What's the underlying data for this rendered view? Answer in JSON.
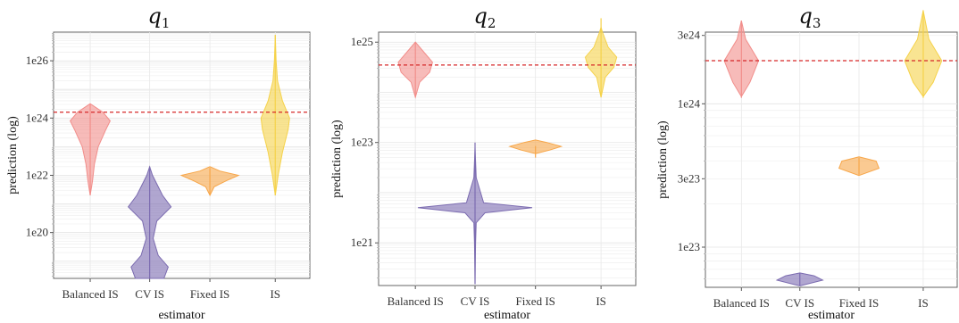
{
  "chart_data": [
    {
      "type": "violin",
      "title": {
        "base": "q",
        "sub": "1"
      },
      "xlabel": "estimator",
      "ylabel": "prediction (log)",
      "y_scale": "log",
      "ylim_log10": [
        18.4,
        27.0
      ],
      "y_ticks": [
        {
          "label": "1e20",
          "value": 1e+20
        },
        {
          "label": "1e22",
          "value": 1e+22
        },
        {
          "label": "1e24",
          "value": 1e+24
        },
        {
          "label": "1e26",
          "value": 1e+26
        }
      ],
      "categories": [
        "Balanced IS",
        "CV IS",
        "Fixed IS",
        "IS"
      ],
      "reference_line": 1.6e+24,
      "grid": true,
      "series": [
        {
          "category": "Balanced IS",
          "color": "#f28e8b",
          "min": 2e+21,
          "max": 3e+24,
          "profile": [
            [
              21.3,
              0.0
            ],
            [
              21.8,
              0.08
            ],
            [
              22.4,
              0.15
            ],
            [
              23.0,
              0.28
            ],
            [
              23.6,
              0.55
            ],
            [
              23.9,
              0.7
            ],
            [
              24.2,
              0.45
            ],
            [
              24.5,
              0.0
            ]
          ]
        },
        {
          "category": "CV IS",
          "color": "#7b6bb0",
          "min": 2.5e+18,
          "max": 2e+22,
          "profile": [
            [
              18.4,
              0.5
            ],
            [
              18.8,
              0.65
            ],
            [
              19.2,
              0.3
            ],
            [
              19.8,
              0.12
            ],
            [
              20.4,
              0.25
            ],
            [
              20.9,
              0.75
            ],
            [
              21.3,
              0.45
            ],
            [
              22.0,
              0.1
            ],
            [
              22.3,
              0.0
            ]
          ]
        },
        {
          "category": "Fixed IS",
          "color": "#f7a649",
          "min": 2e+21,
          "max": 1.8e+22,
          "profile": [
            [
              21.3,
              0.0
            ],
            [
              21.6,
              0.15
            ],
            [
              21.8,
              0.55
            ],
            [
              22.0,
              1.0
            ],
            [
              22.15,
              0.35
            ],
            [
              22.3,
              0.0
            ]
          ]
        },
        {
          "category": "IS",
          "color": "#f5d24a",
          "min": 2e+21,
          "max": 8e+26,
          "profile": [
            [
              21.3,
              0.0
            ],
            [
              22.0,
              0.1
            ],
            [
              22.8,
              0.25
            ],
            [
              23.6,
              0.45
            ],
            [
              24.0,
              0.5
            ],
            [
              24.6,
              0.25
            ],
            [
              25.3,
              0.08
            ],
            [
              26.0,
              0.03
            ],
            [
              26.9,
              0.0
            ]
          ]
        }
      ]
    },
    {
      "type": "violin",
      "title": {
        "base": "q",
        "sub": "2"
      },
      "xlabel": "estimator",
      "ylabel": "prediction (log)",
      "y_scale": "log",
      "ylim_log10": [
        20.15,
        25.2
      ],
      "y_ticks": [
        {
          "label": "1e21",
          "value": 1e+21
        },
        {
          "label": "1e23",
          "value": 1e+23
        },
        {
          "label": "1e25",
          "value": 1e+25
        }
      ],
      "categories": [
        "Balanced IS",
        "CV IS",
        "Fixed IS",
        "IS"
      ],
      "reference_line": 3.5e+24,
      "grid": true,
      "series": [
        {
          "category": "Balanced IS",
          "color": "#f28e8b",
          "min": 8e+23,
          "max": 1e+25,
          "profile": [
            [
              23.9,
              0.0
            ],
            [
              24.2,
              0.15
            ],
            [
              24.4,
              0.5
            ],
            [
              24.6,
              0.6
            ],
            [
              24.8,
              0.3
            ],
            [
              25.0,
              0.0
            ]
          ]
        },
        {
          "category": "CV IS",
          "color": "#7b6bb0",
          "min": 1.5e+20,
          "max": 1e+23,
          "profile": [
            [
              20.2,
              0.0
            ],
            [
              21.0,
              0.02
            ],
            [
              21.4,
              0.04
            ],
            [
              21.6,
              0.35
            ],
            [
              21.7,
              2.0
            ],
            [
              21.8,
              0.3
            ],
            [
              22.3,
              0.04
            ],
            [
              22.9,
              0.0
            ]
          ]
        },
        {
          "category": "Fixed IS",
          "color": "#f7a649",
          "min": 5e+22,
          "max": 8.5e+22,
          "profile": [
            [
              22.78,
              0.0
            ],
            [
              22.85,
              0.5
            ],
            [
              22.92,
              0.9
            ],
            [
              23.0,
              0.4
            ],
            [
              23.05,
              0.0
            ]
          ]
        },
        {
          "category": "IS",
          "color": "#f5d24a",
          "min": 8e+23,
          "max": 3e+25,
          "profile": [
            [
              23.9,
              0.0
            ],
            [
              24.3,
              0.15
            ],
            [
              24.5,
              0.45
            ],
            [
              24.7,
              0.55
            ],
            [
              24.9,
              0.25
            ],
            [
              25.2,
              0.05
            ],
            [
              25.3,
              0.0
            ]
          ]
        }
      ]
    },
    {
      "type": "violin",
      "title": {
        "base": "q",
        "sub": "3"
      },
      "xlabel": "estimator",
      "ylabel": "prediction (log)",
      "y_scale": "log",
      "ylim_log10": [
        22.72,
        24.5
      ],
      "y_ticks": [
        {
          "label": "1e23",
          "value": 1e+23
        },
        {
          "label": "3e23",
          "value": 3e+23
        },
        {
          "label": "1e24",
          "value": 1e+24
        },
        {
          "label": "3e24",
          "value": 3e+24
        }
      ],
      "categories": [
        "Balanced IS",
        "CV IS",
        "Fixed IS",
        "IS"
      ],
      "reference_line": 2e+24,
      "grid": true,
      "series": [
        {
          "category": "Balanced IS",
          "color": "#f28e8b",
          "min": 1.1e+24,
          "max": 3.8e+24,
          "profile": [
            [
              24.05,
              0.0
            ],
            [
              24.15,
              0.3
            ],
            [
              24.3,
              0.6
            ],
            [
              24.45,
              0.15
            ],
            [
              24.58,
              0.0
            ]
          ]
        },
        {
          "category": "CV IS",
          "color": "#7b6bb0",
          "min": 5.4e+22,
          "max": 6.6e+22,
          "profile": [
            [
              22.73,
              0.0
            ],
            [
              22.77,
              0.8
            ],
            [
              22.8,
              0.5
            ],
            [
              22.82,
              0.0
            ]
          ]
        },
        {
          "category": "Fixed IS",
          "color": "#f7a649",
          "min": 3.2e+23,
          "max": 4.2e+23,
          "profile": [
            [
              23.5,
              0.0
            ],
            [
              23.55,
              0.7
            ],
            [
              23.6,
              0.6
            ],
            [
              23.63,
              0.0
            ]
          ]
        },
        {
          "category": "IS",
          "color": "#f5d24a",
          "min": 1.1e+24,
          "max": 4.5e+24,
          "profile": [
            [
              24.05,
              0.0
            ],
            [
              24.15,
              0.35
            ],
            [
              24.3,
              0.65
            ],
            [
              24.45,
              0.2
            ],
            [
              24.65,
              0.0
            ]
          ]
        }
      ]
    }
  ]
}
